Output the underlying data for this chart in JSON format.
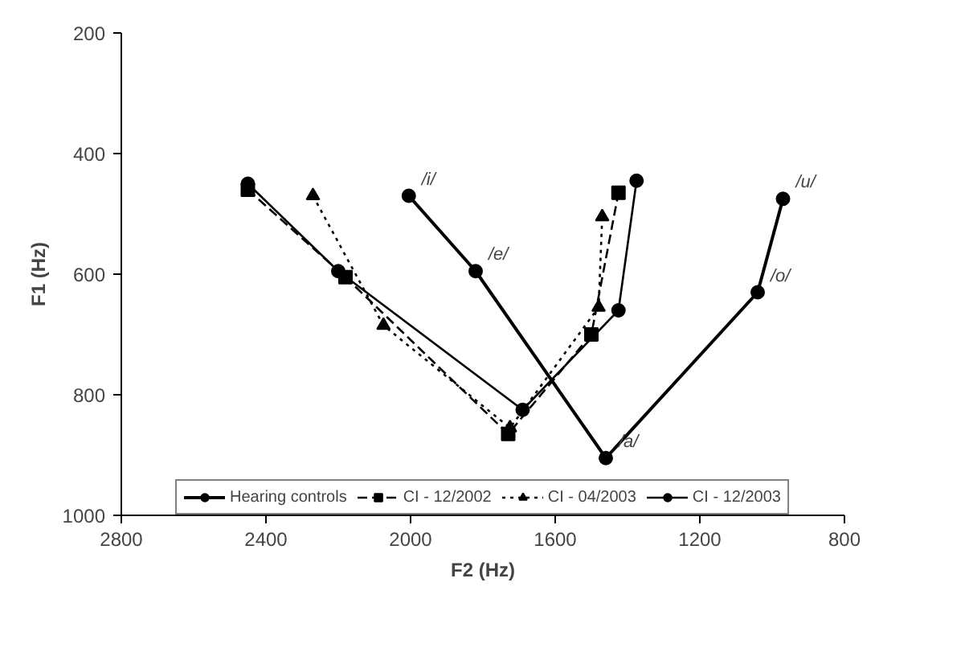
{
  "chart_data": {
    "type": "line",
    "xlabel": "F2 (Hz)",
    "ylabel": "F1 (Hz)",
    "xlim": [
      2800,
      800
    ],
    "xticks": [
      2800,
      2400,
      2000,
      1600,
      1200,
      800
    ],
    "ylim": [
      1000,
      200
    ],
    "yticks": [
      200,
      400,
      600,
      800,
      1000
    ],
    "grid": false,
    "legend": "bottom",
    "series": [
      {
        "name": "Hearing controls",
        "color": "#000000",
        "marker": "circle",
        "line_style": "solid",
        "x": [
          2005,
          1820,
          1460,
          1040,
          970
        ],
        "values": [
          470,
          595,
          905,
          630,
          475
        ]
      },
      {
        "name": "CI - 12/2002",
        "color": "#000000",
        "marker": "square",
        "line_style": "dashed",
        "x": [
          2450,
          2180,
          1730,
          1500,
          1425
        ],
        "values": [
          460,
          605,
          865,
          700,
          465
        ]
      },
      {
        "name": "CI - 04/2003",
        "color": "#000000",
        "marker": "triangle",
        "line_style": "dotted",
        "x": [
          2270,
          2075,
          1725,
          1480,
          1470
        ],
        "values": [
          470,
          685,
          855,
          655,
          505
        ]
      },
      {
        "name": "CI - 12/2003",
        "color": "#000000",
        "marker": "circle",
        "line_style": "solid",
        "x": [
          2450,
          2200,
          1690,
          1425,
          1375
        ],
        "values": [
          450,
          595,
          825,
          660,
          445
        ]
      }
    ],
    "annotations": [
      {
        "text": "/i/",
        "x": 2005,
        "y": 470
      },
      {
        "text": "/e/",
        "x": 1820,
        "y": 595
      },
      {
        "text": "/a/",
        "x": 1460,
        "y": 905
      },
      {
        "text": "/o/",
        "x": 1040,
        "y": 630
      },
      {
        "text": "/u/",
        "x": 970,
        "y": 475
      }
    ]
  }
}
